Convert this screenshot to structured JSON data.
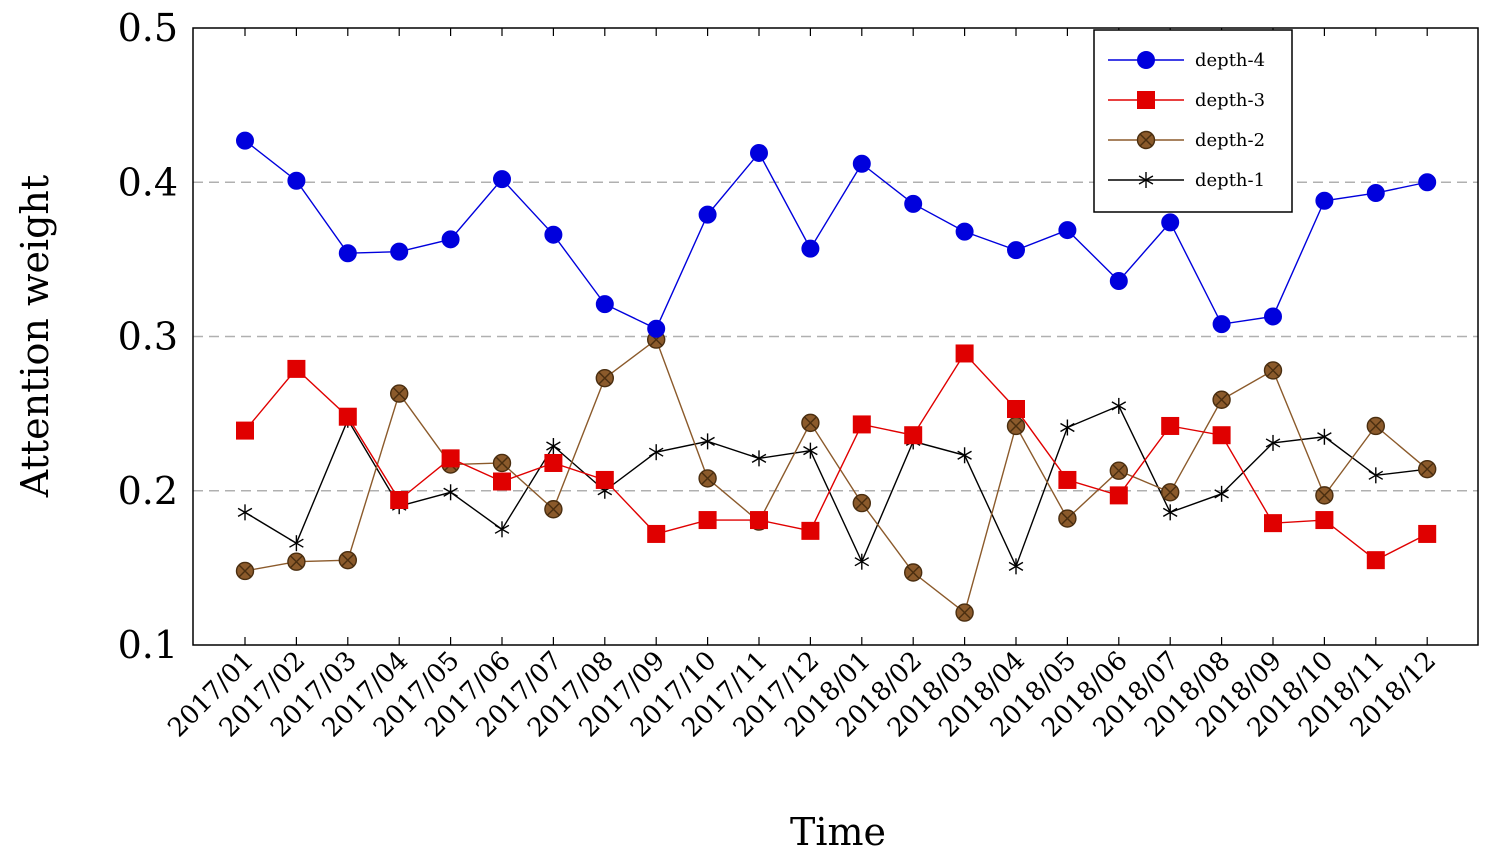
{
  "chart_data": {
    "type": "line",
    "title": "",
    "xlabel": "Time",
    "ylabel": "Attention weight",
    "ylim": [
      0.1,
      0.5
    ],
    "yticks": [
      "0.1",
      "0.2",
      "0.3",
      "0.4",
      "0.5"
    ],
    "grid": "horizontal-dashed",
    "legend_position": "top-right",
    "categories": [
      "2017/01",
      "2017/02",
      "2017/03",
      "2017/04",
      "2017/05",
      "2017/06",
      "2017/07",
      "2017/08",
      "2017/09",
      "2017/10",
      "2017/11",
      "2017/12",
      "2018/01",
      "2018/02",
      "2018/03",
      "2018/04",
      "2018/05",
      "2018/06",
      "2018/07",
      "2018/08",
      "2018/09",
      "2018/10",
      "2018/11",
      "2018/12"
    ],
    "series": [
      {
        "name": "depth-4",
        "color": "#0000dd",
        "marker": "circle",
        "values": [
          0.427,
          0.401,
          0.354,
          0.355,
          0.363,
          0.402,
          0.366,
          0.321,
          0.305,
          0.379,
          0.419,
          0.357,
          0.412,
          0.386,
          0.368,
          0.356,
          0.369,
          0.336,
          0.374,
          0.308,
          0.313,
          0.388,
          0.393,
          0.4
        ]
      },
      {
        "name": "depth-3",
        "color": "#e00000",
        "marker": "square",
        "values": [
          0.239,
          0.279,
          0.248,
          0.194,
          0.221,
          0.206,
          0.218,
          0.207,
          0.172,
          0.181,
          0.181,
          0.174,
          0.243,
          0.236,
          0.289,
          0.253,
          0.207,
          0.197,
          0.242,
          0.236,
          0.179,
          0.181,
          0.155,
          0.172
        ]
      },
      {
        "name": "depth-2",
        "color": "#8b5a2b",
        "marker": "circle-x",
        "values": [
          0.148,
          0.154,
          0.155,
          0.263,
          0.217,
          0.218,
          0.188,
          0.273,
          0.298,
          0.208,
          0.18,
          0.244,
          0.192,
          0.147,
          0.121,
          0.242,
          0.182,
          0.213,
          0.199,
          0.259,
          0.278,
          0.197,
          0.242,
          0.214
        ]
      },
      {
        "name": "depth-1",
        "color": "#000000",
        "marker": "star",
        "values": [
          0.186,
          0.166,
          0.246,
          0.19,
          0.199,
          0.175,
          0.229,
          0.2,
          0.225,
          0.232,
          0.221,
          0.226,
          0.154,
          0.232,
          0.223,
          0.151,
          0.241,
          0.255,
          0.186,
          0.198,
          0.231,
          0.235,
          0.21,
          0.214
        ]
      }
    ]
  }
}
